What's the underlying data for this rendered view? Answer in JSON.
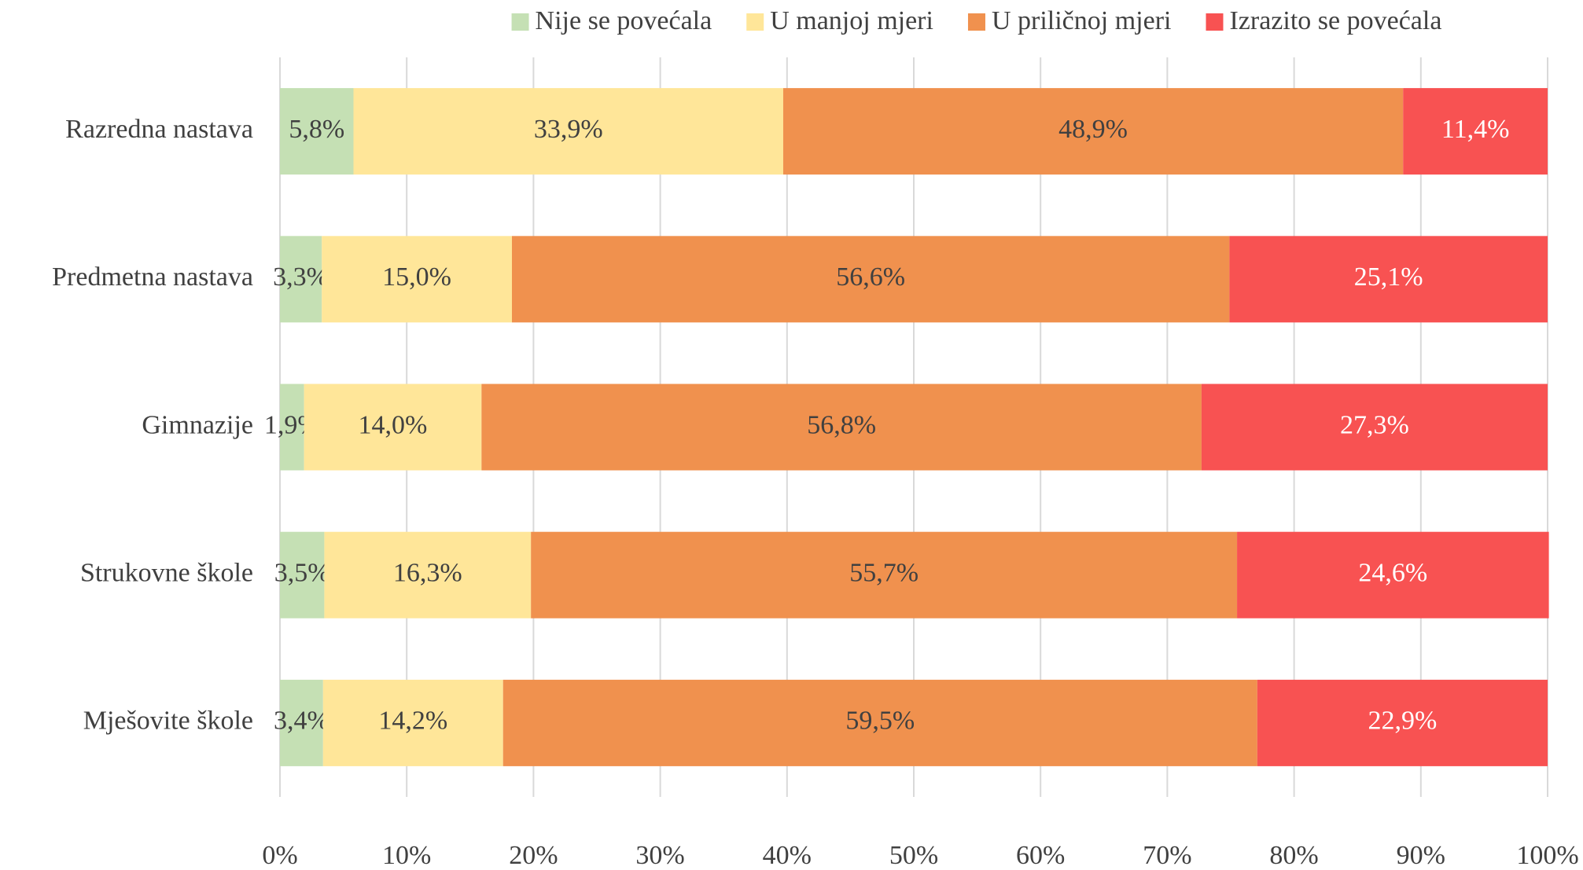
{
  "chart_data": {
    "type": "bar",
    "orientation": "horizontal",
    "stacked": true,
    "categories": [
      "Razredna nastava",
      "Predmetna nastava",
      "Gimnazije",
      "Strukovne škole",
      "Mješovite škole"
    ],
    "series": [
      {
        "name": "Nije se povećala",
        "color": "#c5e0b4",
        "values": [
          5.8,
          3.3,
          1.9,
          3.5,
          3.4
        ],
        "value_labels": [
          "5,8%",
          "3,3%",
          "1,9%",
          "3,5%",
          "3,4%"
        ]
      },
      {
        "name": "U manjoj mjeri",
        "color": "#ffe699",
        "values": [
          33.9,
          15.0,
          14.0,
          16.3,
          14.2
        ],
        "value_labels": [
          "33,9%",
          "15,0%",
          "14,0%",
          "16,3%",
          "14,2%"
        ]
      },
      {
        "name": "U priličnoj mjeri",
        "color": "#f0914e",
        "values": [
          48.9,
          56.6,
          56.8,
          55.7,
          59.5
        ],
        "value_labels": [
          "48,9%",
          "56,6%",
          "56,8%",
          "55,7%",
          "59,5%"
        ]
      },
      {
        "name": "Izrazito se povećala",
        "color": "#f85252",
        "values": [
          11.4,
          25.1,
          27.3,
          24.6,
          22.9
        ],
        "value_labels": [
          "11,4%",
          "25,1%",
          "27,3%",
          "24,6%",
          "22,9%"
        ]
      }
    ],
    "xlim": [
      0,
      100
    ],
    "xticks": [
      {
        "value": 0,
        "label": "0%"
      },
      {
        "value": 10,
        "label": "10%"
      },
      {
        "value": 20,
        "label": "20%"
      },
      {
        "value": 30,
        "label": "30%"
      },
      {
        "value": 40,
        "label": "40%"
      },
      {
        "value": 50,
        "label": "50%"
      },
      {
        "value": 60,
        "label": "60%"
      },
      {
        "value": 70,
        "label": "70%"
      },
      {
        "value": 80,
        "label": "80%"
      },
      {
        "value": 90,
        "label": "90%"
      },
      {
        "value": 100,
        "label": "100%"
      }
    ],
    "grid": true,
    "legend": "top"
  }
}
